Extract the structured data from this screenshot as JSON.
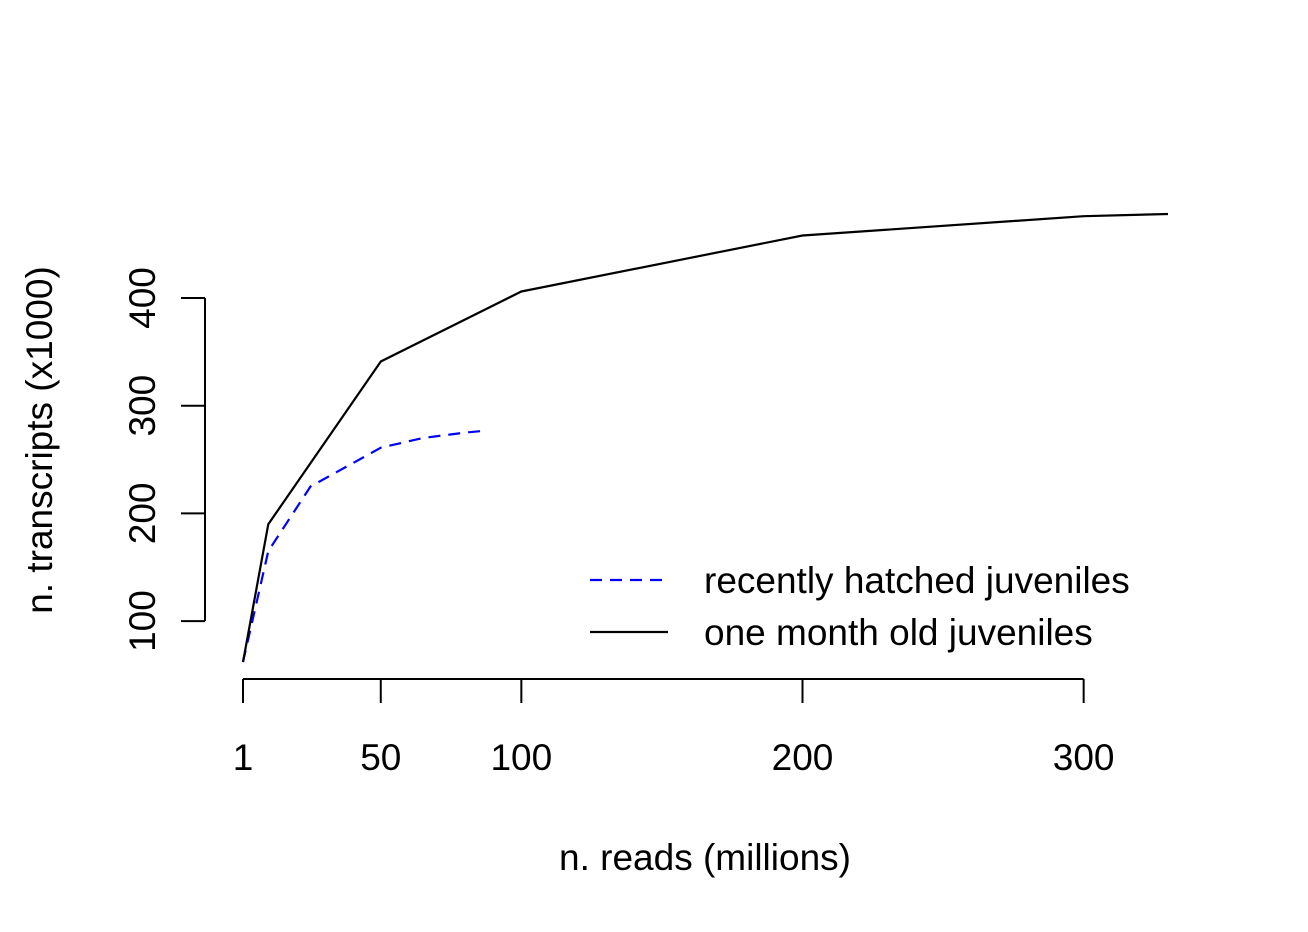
{
  "chart_data": {
    "type": "line",
    "xlabel": "n. reads (millions)",
    "ylabel": "n. transcripts (x1000)",
    "x_ticks": [
      1,
      50,
      100,
      200,
      300
    ],
    "y_ticks": [
      100,
      200,
      300,
      400
    ],
    "xlim": [
      1,
      330
    ],
    "ylim": [
      62,
      478
    ],
    "grid": false,
    "legend_position": "bottom-right",
    "series": [
      {
        "name": "recently hatched juveniles",
        "color": "#0000ff",
        "dash": "dashed",
        "x": [
          1,
          10,
          25,
          50,
          65,
          80,
          88
        ],
        "y": [
          62,
          165,
          225,
          261,
          270,
          275,
          277
        ]
      },
      {
        "name": "one month old juveniles",
        "color": "#000000",
        "dash": "solid",
        "x": [
          1,
          10,
          50,
          100,
          200,
          300,
          330
        ],
        "y": [
          62,
          190,
          341,
          406,
          458,
          476,
          478
        ]
      }
    ]
  }
}
